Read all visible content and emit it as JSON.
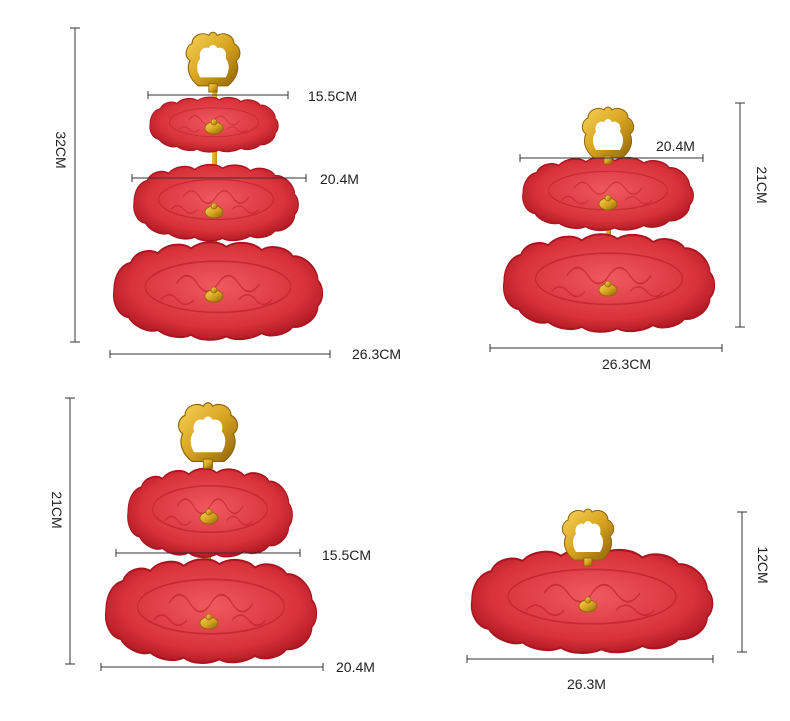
{
  "labels": {
    "top_left": {
      "height": "32CM",
      "top_width": "15.5CM",
      "mid_width": "20.4M",
      "base_width": "26.3CM"
    },
    "top_right": {
      "height": "21CM",
      "top_width": "20.4M",
      "base_width": "26.3CM"
    },
    "bottom_left": {
      "height": "21CM",
      "top_width": "15.5CM",
      "base_width": "20.4M"
    },
    "bottom_right": {
      "height": "12CM",
      "base_width": "26.3M"
    }
  },
  "colors": {
    "plate_red": "#d8323a",
    "plate_dark": "#a9141f",
    "plate_light": "#ef5a5f",
    "gold": "#d9a521",
    "gold_dark": "#8c6208"
  },
  "scene": "product dimension diagram of red cake stands with gold handles"
}
